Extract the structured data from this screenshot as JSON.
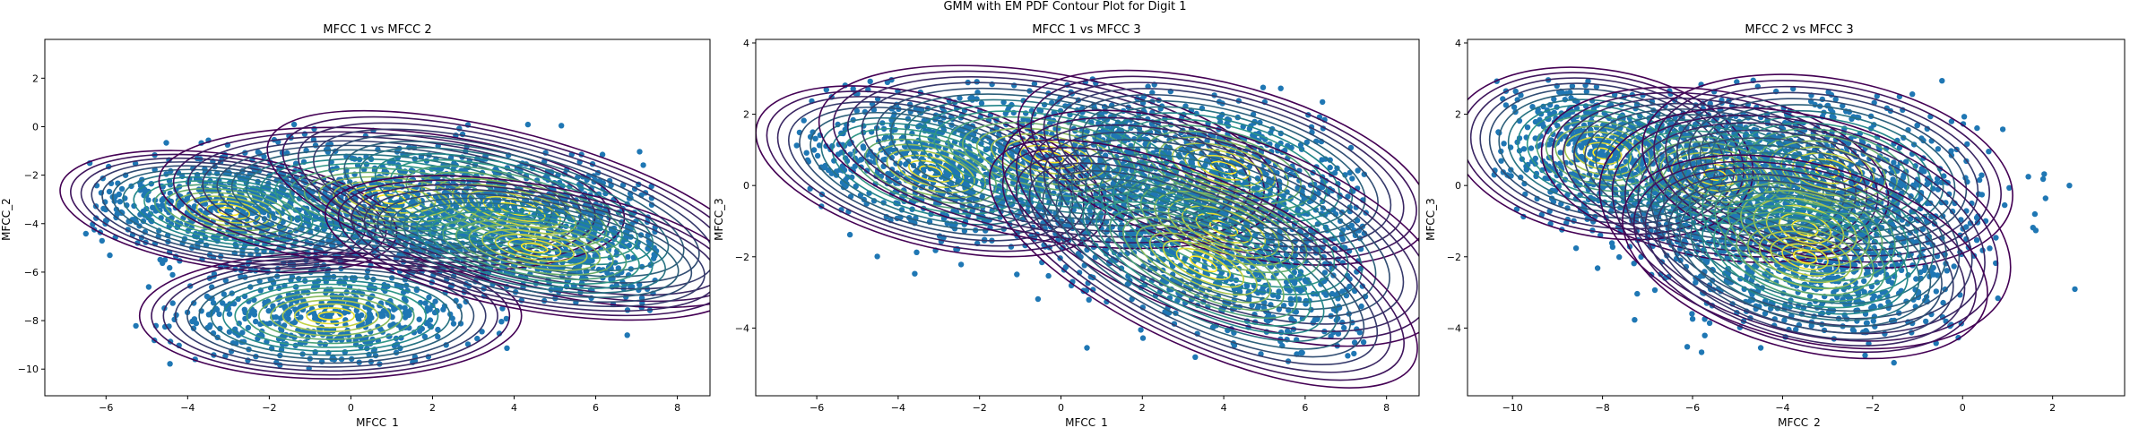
{
  "figure": {
    "suptitle": "GMM with EM PDF Contour Plot for Digit 1"
  },
  "colors": {
    "scatter": "#1f77b4",
    "contour_low": "#440154",
    "contour_mid": "#21908d",
    "contour_high": "#fde725"
  },
  "chart_data": [
    {
      "type": "scatter",
      "title": "MFCC 1 vs MFCC 2",
      "xlabel": "MFCC_1",
      "ylabel": "MFCC_2",
      "xlim": [
        -7.5,
        8.8
      ],
      "ylim": [
        -11.1,
        3.6
      ],
      "xticks": [
        -6,
        -4,
        -2,
        0,
        2,
        4,
        6,
        8
      ],
      "yticks": [
        2,
        0,
        -2,
        -4,
        -6,
        -8,
        -10
      ],
      "point_spread": {
        "x": [
          -6.5,
          7.5
        ],
        "y": [
          -10,
          2.5
        ]
      },
      "components": [
        {
          "mean": [
            -3.0,
            -3.5
          ],
          "sd": [
            1.6,
            0.9
          ],
          "rot": -8
        },
        {
          "mean": [
            -0.5,
            -7.8
          ],
          "sd": [
            1.8,
            1.0
          ],
          "rot": 0
        },
        {
          "mean": [
            1.0,
            -3.0
          ],
          "sd": [
            2.2,
            1.1
          ],
          "rot": -5
        },
        {
          "mean": [
            4.0,
            -3.4
          ],
          "sd": [
            2.4,
            1.2
          ],
          "rot": -15
        },
        {
          "mean": [
            4.5,
            -5.0
          ],
          "sd": [
            2.0,
            1.0
          ],
          "rot": -10
        }
      ]
    },
    {
      "type": "scatter",
      "title": "MFCC 1 vs MFCC 3",
      "xlabel": "MFCC_1",
      "ylabel": "MFCC_3",
      "xlim": [
        -7.5,
        8.8
      ],
      "ylim": [
        -5.9,
        4.1
      ],
      "xticks": [
        -6,
        -4,
        -2,
        0,
        2,
        4,
        6,
        8
      ],
      "yticks": [
        4,
        2,
        0,
        -2,
        -4
      ],
      "point_spread": {
        "x": [
          -6.5,
          7.5
        ],
        "y": [
          -5,
          3
        ]
      },
      "components": [
        {
          "mean": [
            -3.2,
            0.4
          ],
          "sd": [
            1.7,
            0.8
          ],
          "rot": -15
        },
        {
          "mean": [
            -0.3,
            0.8
          ],
          "sd": [
            2.2,
            0.9
          ],
          "rot": -10
        },
        {
          "mean": [
            4.0,
            0.5
          ],
          "sd": [
            2.0,
            0.9
          ],
          "rot": -15
        },
        {
          "mean": [
            4.0,
            -1.2
          ],
          "sd": [
            2.2,
            1.0
          ],
          "rot": -20
        },
        {
          "mean": [
            3.5,
            -2.2
          ],
          "sd": [
            2.2,
            0.9
          ],
          "rot": -25
        }
      ]
    },
    {
      "type": "scatter",
      "title": "MFCC 2 vs MFCC 3",
      "xlabel": "MFCC_2",
      "ylabel": "MFCC_3",
      "xlim": [
        -11.0,
        3.6
      ],
      "ylim": [
        -5.9,
        4.1
      ],
      "xticks": [
        -10,
        -8,
        -6,
        -4,
        -2,
        0,
        2
      ],
      "yticks": [
        4,
        2,
        0,
        -2,
        -4
      ],
      "point_spread": {
        "x": [
          -10.5,
          2.5
        ],
        "y": [
          -5,
          3
        ]
      },
      "components": [
        {
          "mean": [
            -8.0,
            0.9
          ],
          "sd": [
            1.3,
            0.9
          ],
          "rot": -10
        },
        {
          "mean": [
            -5.5,
            0.3
          ],
          "sd": [
            1.5,
            0.9
          ],
          "rot": -10
        },
        {
          "mean": [
            -3.0,
            0.4
          ],
          "sd": [
            1.6,
            1.0
          ],
          "rot": -10
        },
        {
          "mean": [
            -3.5,
            -1.2
          ],
          "sd": [
            1.8,
            1.2
          ],
          "rot": -15
        },
        {
          "mean": [
            -3.5,
            -2.0
          ],
          "sd": [
            1.6,
            1.0
          ],
          "rot": -15
        }
      ]
    }
  ]
}
